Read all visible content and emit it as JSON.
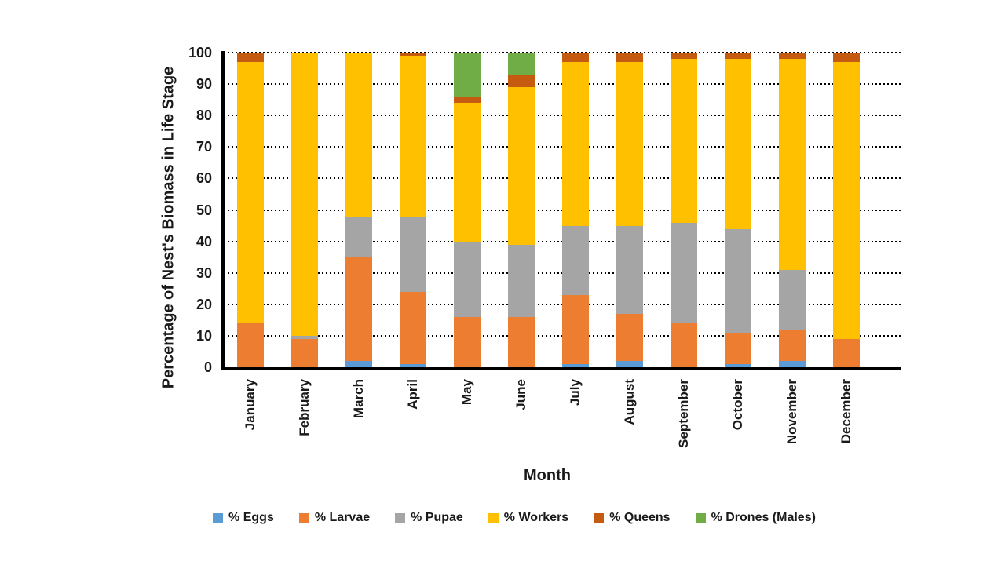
{
  "chart_data": {
    "type": "bar",
    "stacked": true,
    "xlabel": "Month",
    "ylabel": "Percentage of Nest's Biomass in Life Stage",
    "ylim": [
      0,
      100
    ],
    "yticks": [
      0,
      10,
      20,
      30,
      40,
      50,
      60,
      70,
      80,
      90,
      100
    ],
    "grid": "horizontal dotted",
    "gridline_color": "#000000",
    "axis_color": "#000000",
    "text_color": "#1a1a1a",
    "background": "#ffffff",
    "legend_position": "bottom",
    "categories": [
      "January",
      "February",
      "March",
      "April",
      "May",
      "June",
      "July",
      "August",
      "September",
      "October",
      "November",
      "December"
    ],
    "series": [
      {
        "name": "% Eggs",
        "color": "#5B9BD5",
        "values": [
          0,
          0,
          2,
          1,
          0,
          0,
          1,
          2,
          0,
          1,
          2,
          0
        ]
      },
      {
        "name": "% Larvae",
        "color": "#ED7D31",
        "values": [
          14,
          9,
          33,
          23,
          16,
          16,
          22,
          15,
          14,
          10,
          10,
          9
        ]
      },
      {
        "name": "% Pupae",
        "color": "#A5A5A5",
        "values": [
          0,
          1,
          13,
          24,
          24,
          23,
          22,
          28,
          32,
          33,
          19,
          0
        ]
      },
      {
        "name": "% Workers",
        "color": "#FFC000",
        "values": [
          83,
          90,
          52,
          51,
          44,
          50,
          52,
          52,
          52,
          54,
          67,
          88
        ]
      },
      {
        "name": "% Queens",
        "color": "#C55A11",
        "values": [
          3,
          0,
          0,
          1,
          2,
          4,
          3,
          3,
          2,
          2,
          2,
          3
        ]
      },
      {
        "name": "% Drones (Males)",
        "color": "#70AD47",
        "values": [
          0,
          0,
          0,
          0,
          14,
          7,
          0,
          0,
          0,
          0,
          0,
          0
        ]
      }
    ]
  }
}
